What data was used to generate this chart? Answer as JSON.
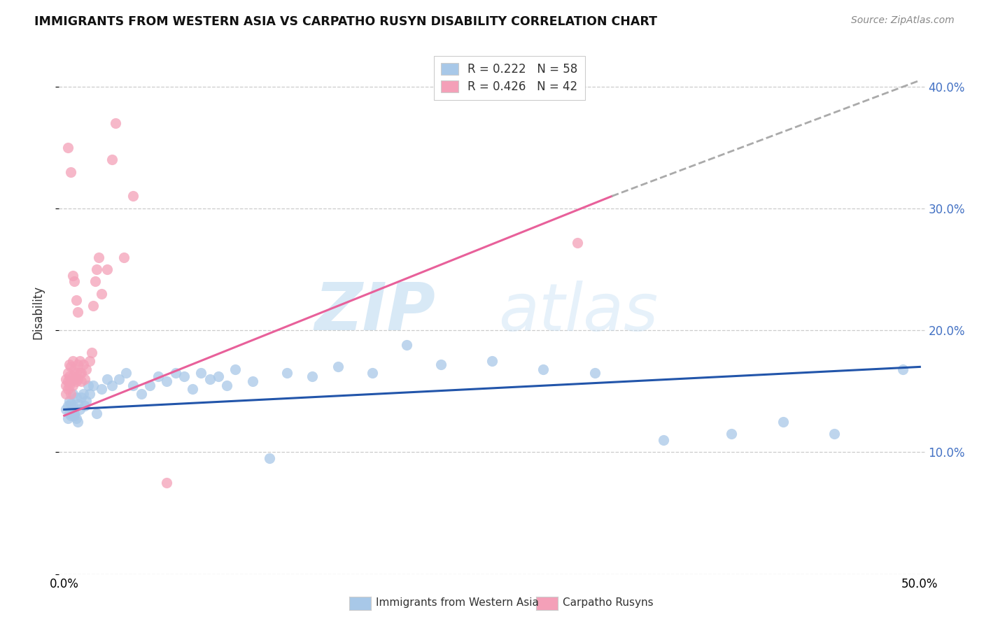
{
  "title": "IMMIGRANTS FROM WESTERN ASIA VS CARPATHO RUSYN DISABILITY CORRELATION CHART",
  "source": "Source: ZipAtlas.com",
  "ylabel": "Disability",
  "xlim": [
    0.0,
    0.5
  ],
  "ylim": [
    0.0,
    0.43
  ],
  "blue_R": 0.222,
  "blue_N": 58,
  "pink_R": 0.426,
  "pink_N": 42,
  "blue_color": "#a8c8e8",
  "pink_color": "#f4a0b8",
  "blue_line_color": "#2255aa",
  "pink_line_color": "#e8609a",
  "watermark_color": "#c8dff0",
  "legend_label_blue": "Immigrants from Western Asia",
  "legend_label_pink": "Carpatho Rusyns",
  "blue_x": [
    0.001,
    0.002,
    0.002,
    0.003,
    0.003,
    0.004,
    0.004,
    0.005,
    0.005,
    0.006,
    0.006,
    0.007,
    0.007,
    0.008,
    0.008,
    0.009,
    0.01,
    0.011,
    0.012,
    0.013,
    0.014,
    0.015,
    0.017,
    0.019,
    0.022,
    0.025,
    0.028,
    0.032,
    0.036,
    0.04,
    0.045,
    0.05,
    0.055,
    0.06,
    0.065,
    0.07,
    0.075,
    0.08,
    0.085,
    0.09,
    0.095,
    0.1,
    0.11,
    0.12,
    0.13,
    0.145,
    0.16,
    0.18,
    0.2,
    0.22,
    0.25,
    0.28,
    0.31,
    0.35,
    0.39,
    0.42,
    0.45,
    0.49
  ],
  "blue_y": [
    0.135,
    0.138,
    0.128,
    0.132,
    0.142,
    0.13,
    0.14,
    0.138,
    0.148,
    0.132,
    0.13,
    0.145,
    0.128,
    0.14,
    0.125,
    0.135,
    0.145,
    0.148,
    0.138,
    0.142,
    0.155,
    0.148,
    0.155,
    0.132,
    0.152,
    0.16,
    0.155,
    0.16,
    0.165,
    0.155,
    0.148,
    0.155,
    0.162,
    0.158,
    0.165,
    0.162,
    0.152,
    0.165,
    0.16,
    0.162,
    0.155,
    0.168,
    0.158,
    0.095,
    0.165,
    0.162,
    0.17,
    0.165,
    0.188,
    0.172,
    0.175,
    0.168,
    0.165,
    0.11,
    0.115,
    0.125,
    0.115,
    0.168
  ],
  "pink_x": [
    0.001,
    0.001,
    0.001,
    0.002,
    0.002,
    0.002,
    0.003,
    0.003,
    0.003,
    0.004,
    0.004,
    0.004,
    0.005,
    0.005,
    0.005,
    0.006,
    0.006,
    0.007,
    0.007,
    0.008,
    0.008,
    0.009,
    0.009,
    0.01,
    0.01,
    0.011,
    0.012,
    0.013,
    0.015,
    0.016,
    0.017,
    0.018,
    0.019,
    0.02,
    0.022,
    0.025,
    0.028,
    0.03,
    0.035,
    0.04,
    0.06,
    0.3
  ],
  "pink_y": [
    0.155,
    0.16,
    0.148,
    0.152,
    0.158,
    0.165,
    0.162,
    0.155,
    0.172,
    0.148,
    0.158,
    0.17,
    0.162,
    0.155,
    0.175,
    0.16,
    0.168,
    0.165,
    0.158,
    0.172,
    0.16,
    0.165,
    0.175,
    0.158,
    0.165,
    0.172,
    0.16,
    0.168,
    0.175,
    0.182,
    0.22,
    0.24,
    0.25,
    0.26,
    0.23,
    0.25,
    0.34,
    0.37,
    0.26,
    0.31,
    0.075,
    0.272
  ],
  "pink_extra_high_x": [
    0.002,
    0.004,
    0.005,
    0.006,
    0.007,
    0.008
  ],
  "pink_extra_high_y": [
    0.35,
    0.33,
    0.245,
    0.24,
    0.225,
    0.215
  ]
}
